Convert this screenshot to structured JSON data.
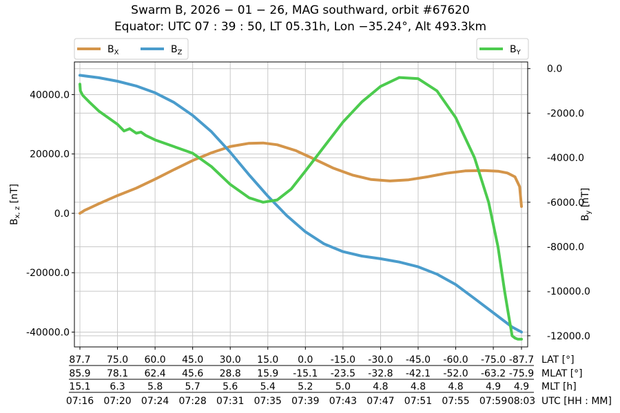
{
  "chart_data": {
    "type": "line",
    "title_line1": "Swarm B,  2026 − 01 − 26,  MAG southward,  orbit #67620",
    "title_line2": "Equator:  UTC 07 : 39 : 50,  LT 05.31h,  Lon  −35.24°,  Alt 493.3km",
    "ylabel_left": "B",
    "ylabel_left_sub": "x, z",
    "ylabel_left_unit": " [nT]",
    "ylabel_right": "B",
    "ylabel_right_sub": "y",
    "ylabel_right_unit": " [nT]",
    "ylim_left": [
      -45000,
      51000
    ],
    "ylim_right": [
      -12500,
      300
    ],
    "left_ticks": [
      "40000.0",
      "20000.0",
      "0.0",
      "-20000.0",
      "-40000.0"
    ],
    "left_tick_values": [
      40000,
      20000,
      0,
      -20000,
      -40000
    ],
    "right_ticks": [
      "0.0",
      "-2000.0",
      "-4000.0",
      "-6000.0",
      "-8000.0",
      "-10000.0",
      "-12000.0"
    ],
    "right_tick_values": [
      0,
      -2000,
      -4000,
      -6000,
      -8000,
      -10000,
      -12000
    ],
    "x_range": [
      0,
      47
    ],
    "x_tick_positions": [
      0,
      4,
      8,
      12,
      16,
      20,
      24,
      28,
      32,
      36,
      40,
      44,
      47
    ],
    "grid": true,
    "legend_left_placement": "above-top-left",
    "legend_right_placement": "above-top-right",
    "secondary_axis_rows": [
      {
        "label": "LAT [°]",
        "values": [
          "87.7",
          "75.0",
          "60.0",
          "45.0",
          "30.0",
          "15.0",
          "0.0",
          "-15.0",
          "-30.0",
          "-45.0",
          "-60.0",
          "-75.0",
          "-87.7"
        ]
      },
      {
        "label": "MLAT [°]",
        "values": [
          "85.9",
          "78.1",
          "62.4",
          "45.6",
          "28.8",
          "15.9",
          "-15.1",
          "-23.5",
          "-32.8",
          "-42.1",
          "-52.0",
          "-63.2",
          "-75.9"
        ]
      },
      {
        "label": "MLT [h]",
        "values": [
          "15.1",
          "6.3",
          "5.8",
          "5.7",
          "5.6",
          "5.4",
          "5.2",
          "5.0",
          "4.8",
          "4.8",
          "4.8",
          "4.9",
          "4.9"
        ]
      },
      {
        "label": "UTC [HH : MM]",
        "values": [
          "07:16",
          "07:20",
          "07:24",
          "07:28",
          "07:31",
          "07:35",
          "07:39",
          "07:43",
          "07:47",
          "07:51",
          "07:55",
          "07:59",
          "08:03"
        ]
      }
    ],
    "series": [
      {
        "name": "B",
        "sub": "X",
        "axis": "left",
        "color": "#d4954a",
        "x": [
          0,
          0.5,
          2,
          4,
          6,
          8,
          10,
          12,
          14,
          16,
          18,
          19.5,
          21,
          23,
          25,
          27,
          29,
          31,
          33,
          35,
          37,
          39,
          41,
          43,
          44.5,
          45.5,
          46.3,
          46.8,
          47
        ],
        "y": [
          0,
          1000,
          3200,
          6000,
          8500,
          11500,
          14700,
          17800,
          20400,
          22500,
          23600,
          23700,
          23100,
          21100,
          18200,
          15200,
          12900,
          11400,
          10900,
          11300,
          12300,
          13500,
          14300,
          14400,
          14200,
          13600,
          12300,
          9000,
          2300
        ]
      },
      {
        "name": "B",
        "sub": "Z",
        "axis": "left",
        "color": "#4a9ccc",
        "x": [
          0,
          2,
          4,
          6,
          8,
          10,
          12,
          14,
          16,
          18,
          20,
          22,
          24,
          26,
          28,
          30,
          32,
          34,
          36,
          38,
          40,
          42,
          44,
          46,
          47
        ],
        "y": [
          46500,
          45700,
          44500,
          42900,
          40600,
          37400,
          33000,
          27500,
          20600,
          13000,
          5800,
          -700,
          -6200,
          -10300,
          -12900,
          -14400,
          -15300,
          -16400,
          -18000,
          -20500,
          -24000,
          -28700,
          -33500,
          -38300,
          -40000
        ]
      },
      {
        "name": "B",
        "sub": "Y",
        "axis": "right",
        "color": "#4ccb4e",
        "x": [
          0,
          0.05,
          0.3,
          1,
          2,
          3,
          4,
          4.7,
          5.3,
          6,
          6.5,
          7,
          8,
          10,
          12,
          14,
          16,
          18,
          19.5,
          21,
          22.5,
          24,
          26,
          28,
          30,
          32,
          34,
          36,
          38,
          40,
          42,
          43.5,
          44.5,
          45.2,
          45.6,
          46,
          46.3,
          46.6,
          47
        ],
        "y": [
          -700,
          -1000,
          -1200,
          -1500,
          -1900,
          -2200,
          -2500,
          -2800,
          -2700,
          -2900,
          -2850,
          -3000,
          -3200,
          -3500,
          -3800,
          -4400,
          -5200,
          -5800,
          -6000,
          -5900,
          -5400,
          -4600,
          -3500,
          -2400,
          -1500,
          -800,
          -400,
          -450,
          -1000,
          -2200,
          -4000,
          -6000,
          -8000,
          -10000,
          -11000,
          -12000,
          -12100,
          -12150,
          -12150
        ]
      }
    ]
  }
}
